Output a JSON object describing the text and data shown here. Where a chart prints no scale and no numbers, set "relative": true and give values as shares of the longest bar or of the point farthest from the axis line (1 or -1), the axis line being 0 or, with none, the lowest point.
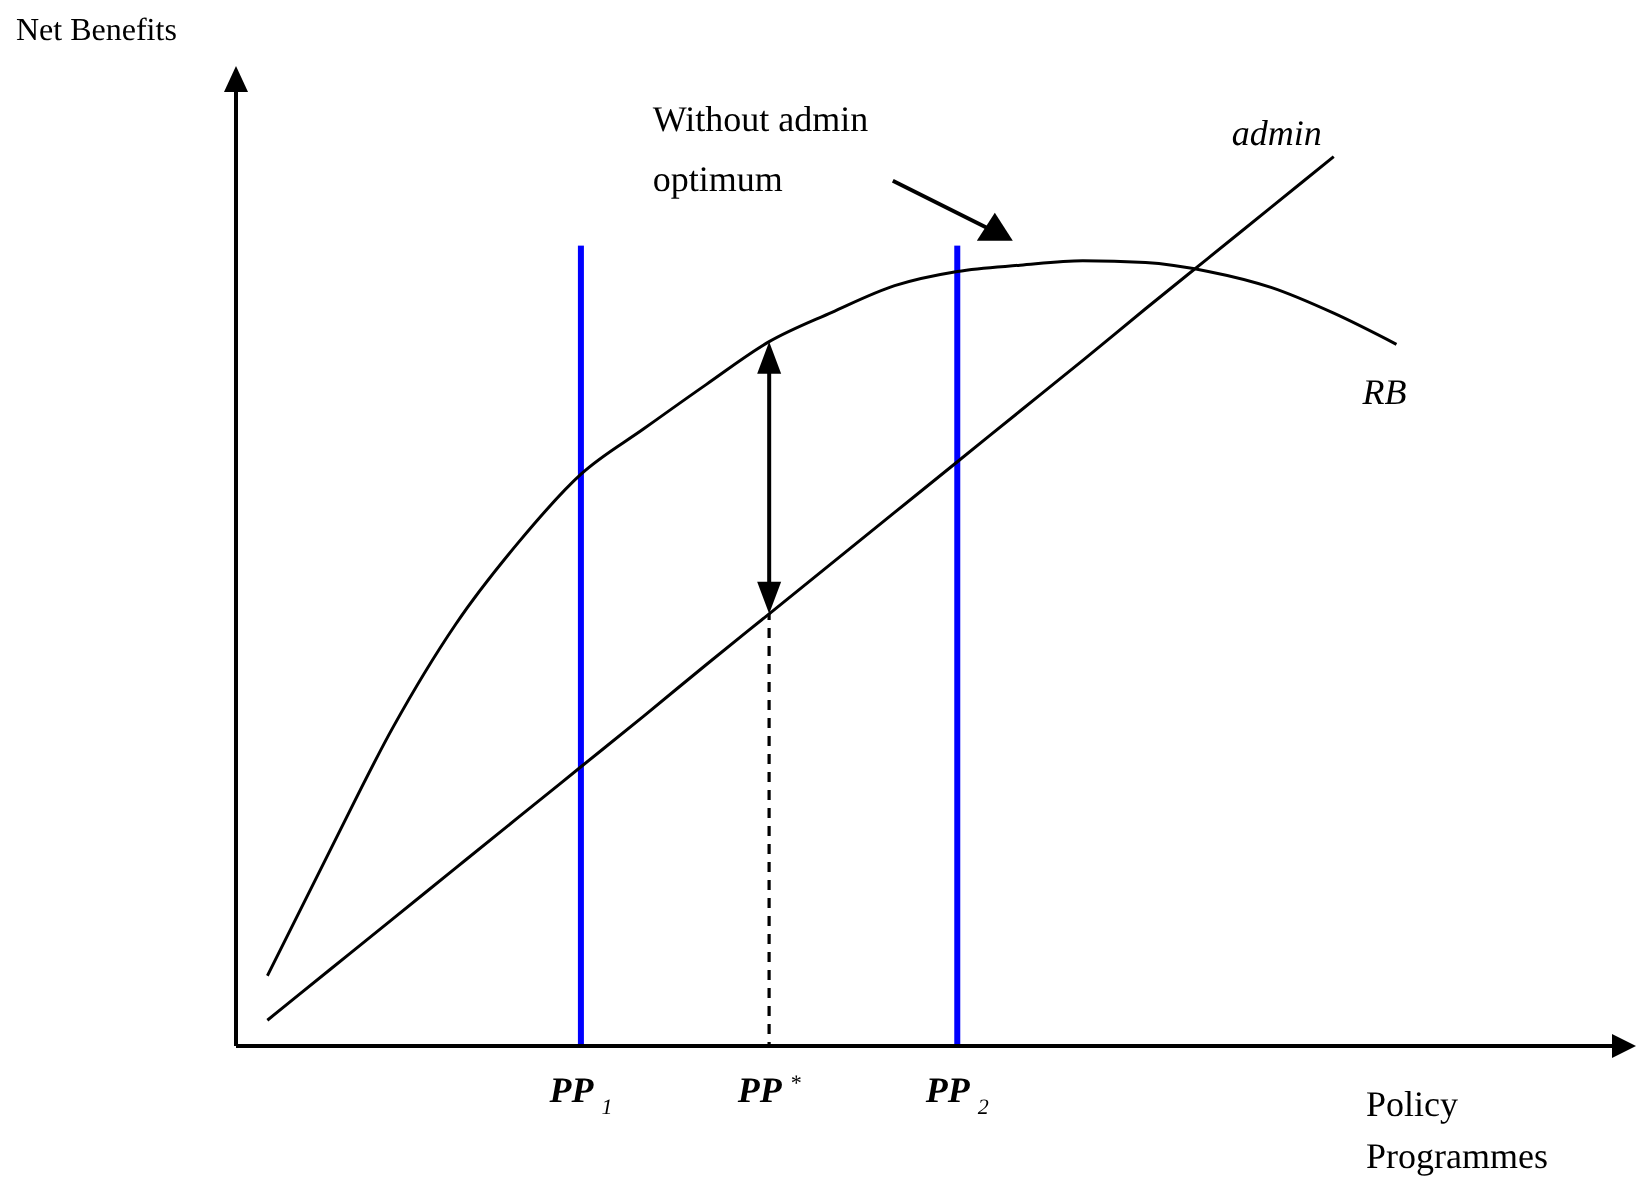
{
  "chart_data": {
    "type": "line",
    "relative": true,
    "xlabel": "Policy Programmes",
    "ylabel": "Net Benefits",
    "categories": [
      null,
      null,
      null,
      null,
      null,
      "PP$_{1}$",
      null,
      null,
      "PP$^{*}$",
      null,
      null,
      "PP$_{2}$",
      null,
      null,
      null,
      null,
      null,
      null,
      null,
      null,
      null,
      null
    ],
    "grid": false,
    "legend": false,
    "marker": "none",
    "annotations": [
      "Without admin optimum"
    ],
    "series": [
      {
        "name": "RB",
        "color": "#000000",
        "values": [
          0.079,
          0.22,
          0.358,
          0.474,
          0.566,
          0.643,
          0.694,
          0.744,
          0.792,
          0.825,
          0.855,
          0.871,
          0.878,
          0.883,
          0.881,
          0.871,
          0.853,
          0.824,
          0.789,
          null,
          null,
          null
        ]
      },
      {
        "name": "admin",
        "color": "#000000",
        "values": [
          0.029,
          0.086,
          0.143,
          0.2,
          0.257,
          0.314,
          0.371,
          0.429,
          0.486,
          0.543,
          0.6,
          0.657,
          0.714,
          0.771,
          0.829,
          0.886,
          0.943,
          1.0,
          null,
          null,
          null,
          null
        ]
      },
      {
        "type": "bar",
        "color": "#0000ff",
        "values": [
          null,
          null,
          null,
          null,
          null,
          0.9,
          null,
          null,
          null,
          null,
          null,
          0.9,
          null,
          null,
          null,
          null,
          null,
          null,
          null,
          null,
          null,
          null
        ]
      },
      {
        "type": "bar",
        "color": "#000000",
        "line_style": "dashed",
        "values": [
          null,
          null,
          null,
          null,
          null,
          null,
          null,
          null,
          0.486,
          null,
          null,
          null,
          null,
          null,
          null,
          null,
          null,
          null,
          null,
          null,
          null,
          null
        ]
      }
    ]
  }
}
